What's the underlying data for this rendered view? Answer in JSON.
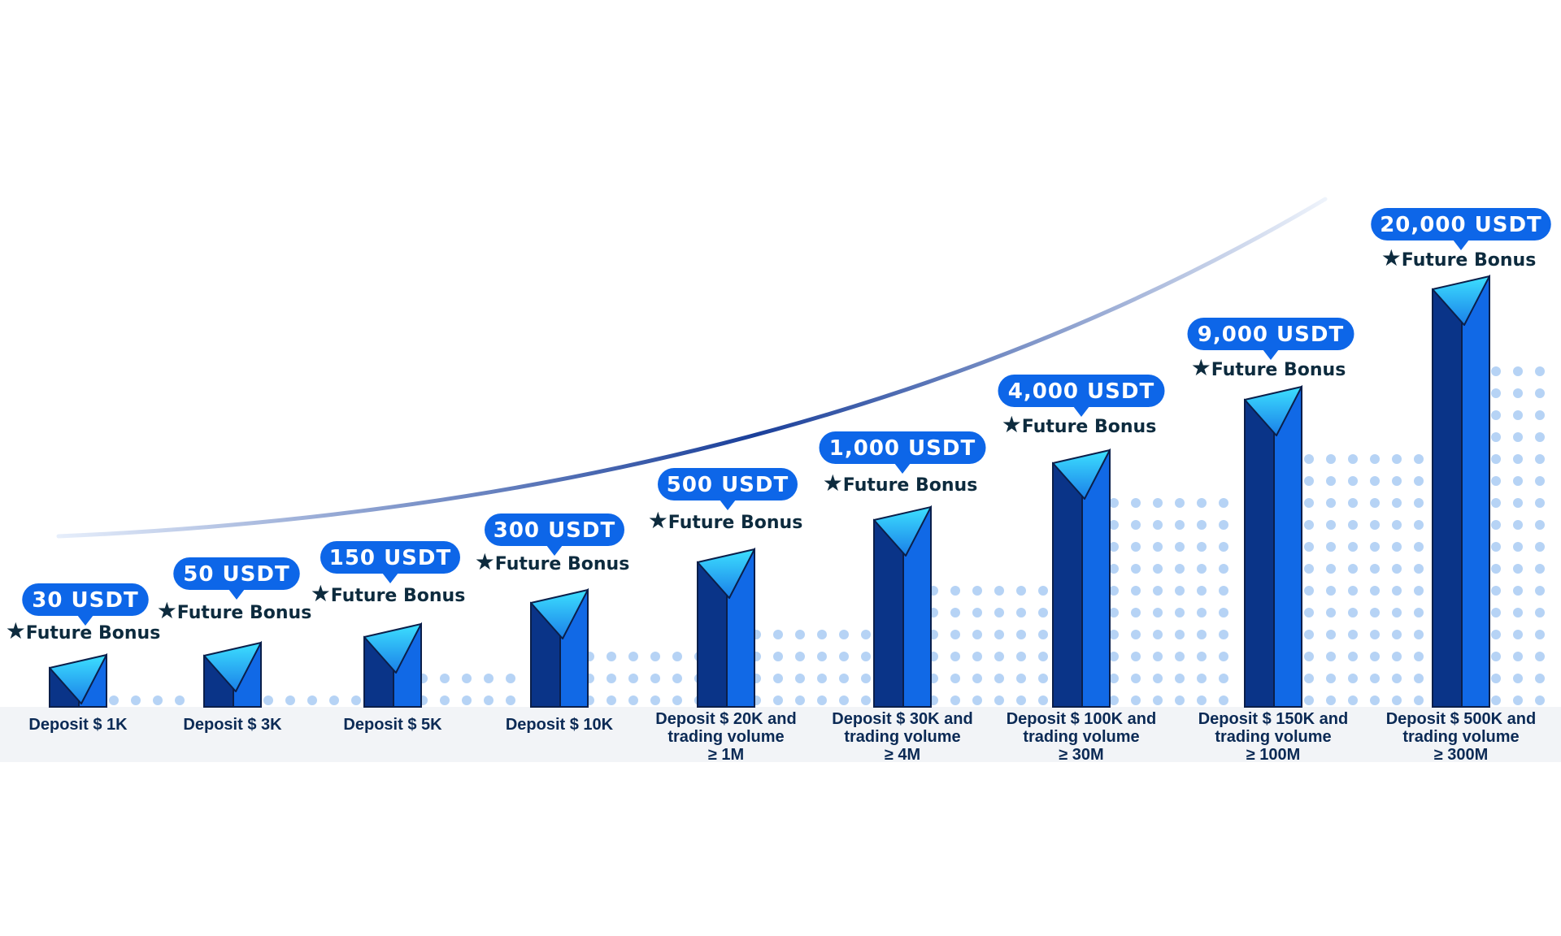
{
  "colors": {
    "pill": "#0d66e8",
    "pill_text": "#ffffff",
    "bar_dark": "#0a3488",
    "bar_light": "#1169e6",
    "cap_gradient_top": "#3de0ff",
    "cap_gradient_bottom": "#1a7fe8",
    "dots": "#9ec4f1",
    "label_text": "#0b2a55",
    "star_text": "#0d2b3e",
    "baseline_band": "#f2f4f7",
    "curve_start": "#e6eefb",
    "curve_mid": "#1a3f9a",
    "curve_end": "#eef3fb"
  },
  "star_glyph": "★",
  "chart_data": {
    "type": "bar",
    "title": "",
    "xlabel": "",
    "ylabel": "",
    "grid": false,
    "legend": "none",
    "categories": [
      {
        "lines": [
          "Deposit $ 1K"
        ]
      },
      {
        "lines": [
          "Deposit  $ 3K"
        ]
      },
      {
        "lines": [
          "Deposit  $ 5K"
        ]
      },
      {
        "lines": [
          "Deposit  $ 10K"
        ]
      },
      {
        "lines": [
          "Deposit  $ 20K and",
          "trading volume",
          "≥ 1M"
        ]
      },
      {
        "lines": [
          "Deposit $ 30K and",
          "trading volume",
          "≥ 4M"
        ]
      },
      {
        "lines": [
          "Deposit $ 100K and",
          "trading volume",
          "≥ 30M"
        ]
      },
      {
        "lines": [
          "Deposit $ 150K and",
          "trading volume",
          "≥ 100M"
        ]
      },
      {
        "lines": [
          "Deposit $ 500K and",
          "trading volume",
          "≥ 300M"
        ]
      }
    ],
    "values": [
      30,
      50,
      150,
      300,
      500,
      1000,
      4000,
      9000,
      20000
    ],
    "value_labels": [
      "30 USDT",
      "50 USDT",
      "150 USDT",
      "300 USDT",
      "500 USDT",
      "1,000 USDT",
      "4,000 USDT",
      "9,000 USDT",
      "20,000 USDT"
    ],
    "bonus_label": "Future Bonus"
  }
}
